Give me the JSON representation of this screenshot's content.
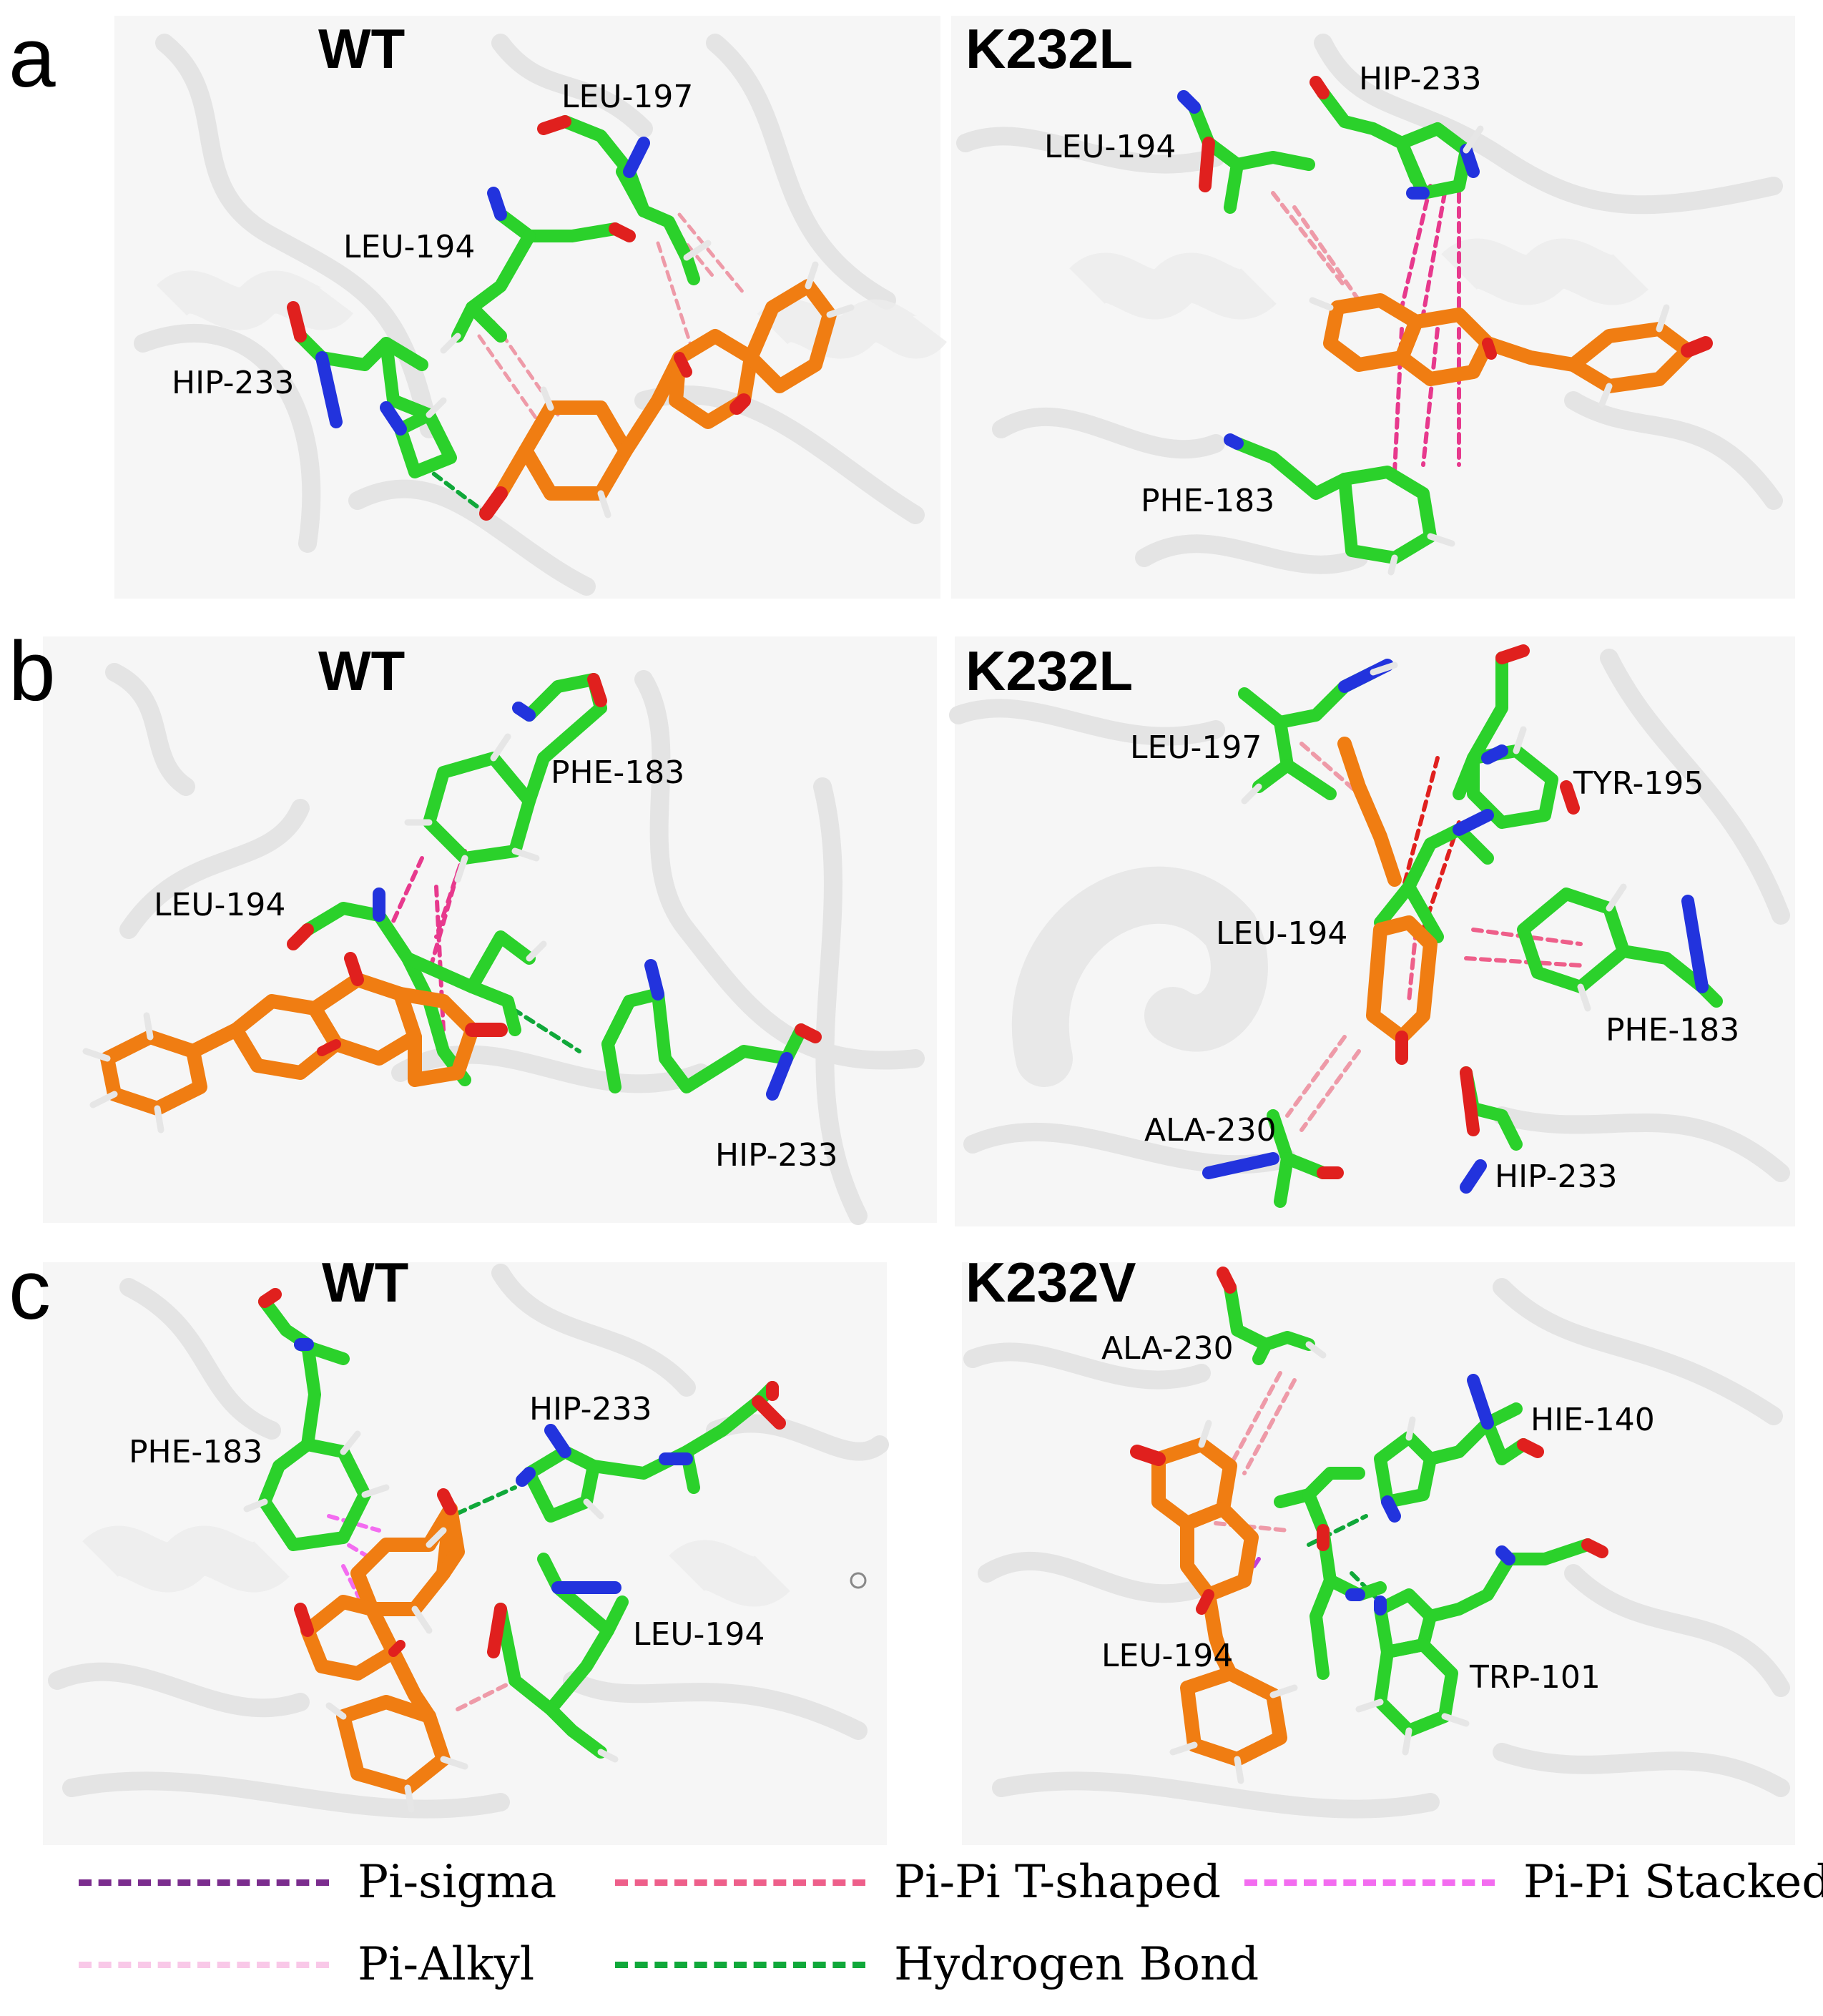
{
  "panels": [
    {
      "letter": "a",
      "left": {
        "title": "WT",
        "residues": [
          "LEU-197",
          "LEU-194",
          "HIP-233"
        ]
      },
      "right": {
        "title": "K232L",
        "residues": [
          "LEU-194",
          "HIP-233",
          "PHE-183"
        ]
      }
    },
    {
      "letter": "b",
      "left": {
        "title": "WT",
        "residues": [
          "PHE-183",
          "LEU-194",
          "HIP-233"
        ]
      },
      "right": {
        "title": "K232L",
        "residues": [
          "LEU-197",
          "TYR-195",
          "LEU-194",
          "PHE-183",
          "ALA-230",
          "HIP-233"
        ]
      }
    },
    {
      "letter": "c",
      "left": {
        "title": "WT",
        "residues": [
          "HIP-233",
          "PHE-183",
          "LEU-194"
        ]
      },
      "right": {
        "title": "K232V",
        "residues": [
          "ALA-230",
          "HIE-140",
          "LEU-194",
          "TRP-101"
        ]
      }
    }
  ],
  "legend": [
    {
      "label": "Pi-sigma",
      "color": "#7b2d8e"
    },
    {
      "label": "Pi-Pi T-shaped",
      "color": "#ee5f8a"
    },
    {
      "label": "Pi-Pi Stacked",
      "color": "#f36cf0"
    },
    {
      "label": "Pi-Alkyl",
      "color": "#f9c8e8"
    },
    {
      "label": "Hydrogen Bond",
      "color": "#10a83a"
    }
  ],
  "colors": {
    "carbon_residue": "#2bd12b",
    "carbon_ligand": "#f07d12",
    "nitrogen": "#2233dd",
    "oxygen": "#e0201e",
    "hydrogen": "#e6e6e6",
    "cartoon": "#ededed"
  }
}
